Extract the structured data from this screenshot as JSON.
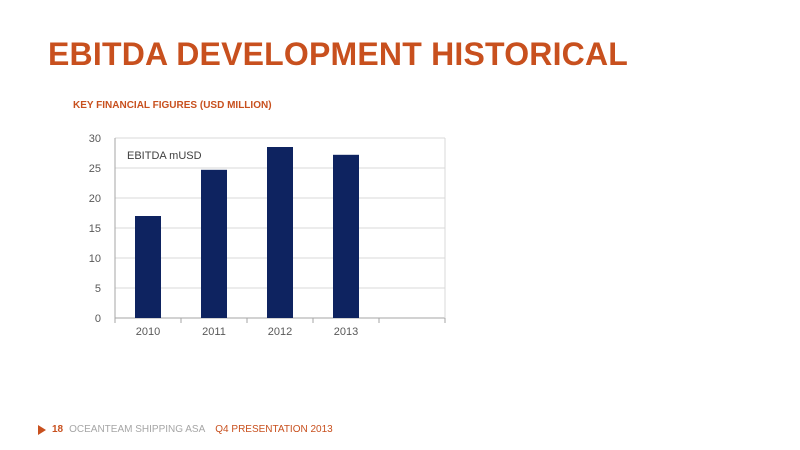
{
  "slide": {
    "title": "EBITDA DEVELOPMENT HISTORICAL",
    "subtitle": "KEY FINANCIAL FIGURES (USD MILLION)"
  },
  "footer": {
    "page_number": "18",
    "company": "OCEANTEAM SHIPPING ASA",
    "presentation": "Q4 PRESENTATION 2013"
  },
  "colors": {
    "accent": "#c8501e",
    "bar": "#0e2360",
    "grid": "#d9d9d9"
  },
  "chart_data": {
    "type": "bar",
    "categories": [
      "2010",
      "2011",
      "2012",
      "2013",
      ""
    ],
    "series": [
      {
        "name": "EBITDA mUSD",
        "values": [
          17.0,
          24.7,
          28.5,
          27.2,
          null
        ]
      }
    ],
    "ylim": [
      0,
      30
    ],
    "yticks": [
      0,
      5,
      10,
      15,
      20,
      25,
      30
    ],
    "xlabel": "",
    "ylabel": "",
    "grid": true,
    "legend": "top-left"
  }
}
